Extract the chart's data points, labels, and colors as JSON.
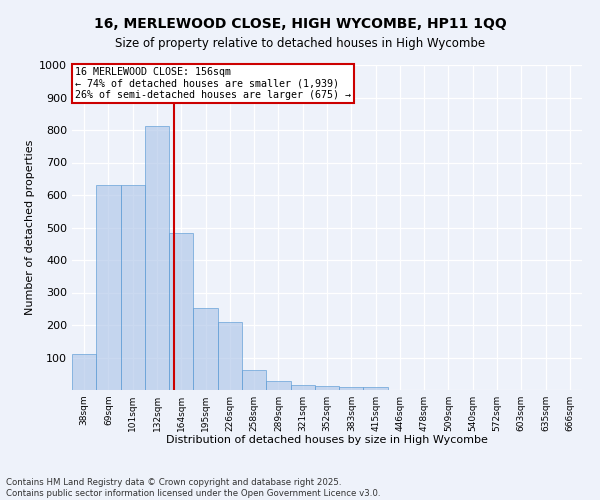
{
  "title_line1": "16, MERLEWOOD CLOSE, HIGH WYCOMBE, HP11 1QQ",
  "title_line2": "Size of property relative to detached houses in High Wycombe",
  "xlabel": "Distribution of detached houses by size in High Wycombe",
  "ylabel": "Number of detached properties",
  "categories": [
    "38sqm",
    "69sqm",
    "101sqm",
    "132sqm",
    "164sqm",
    "195sqm",
    "226sqm",
    "258sqm",
    "289sqm",
    "321sqm",
    "352sqm",
    "383sqm",
    "415sqm",
    "446sqm",
    "478sqm",
    "509sqm",
    "540sqm",
    "572sqm",
    "603sqm",
    "635sqm",
    "666sqm"
  ],
  "values": [
    110,
    632,
    632,
    813,
    483,
    253,
    209,
    63,
    27,
    16,
    11,
    10,
    9,
    0,
    0,
    0,
    0,
    0,
    0,
    0,
    0
  ],
  "bar_color": "#aec6e8",
  "bar_edge_color": "#5b9bd5",
  "property_label": "16 MERLEWOOD CLOSE: 156sqm",
  "annotation_line1": "← 74% of detached houses are smaller (1,939)",
  "annotation_line2": "26% of semi-detached houses are larger (675) →",
  "vline_color": "#cc0000",
  "vline_position": 3.72,
  "annotation_box_color": "#cc0000",
  "ylim": [
    0,
    1000
  ],
  "yticks": [
    0,
    100,
    200,
    300,
    400,
    500,
    600,
    700,
    800,
    900,
    1000
  ],
  "footer_line1": "Contains HM Land Registry data © Crown copyright and database right 2025.",
  "footer_line2": "Contains public sector information licensed under the Open Government Licence v3.0.",
  "background_color": "#eef2fa",
  "fig_background_color": "#eef2fa",
  "bar_alpha": 0.65
}
